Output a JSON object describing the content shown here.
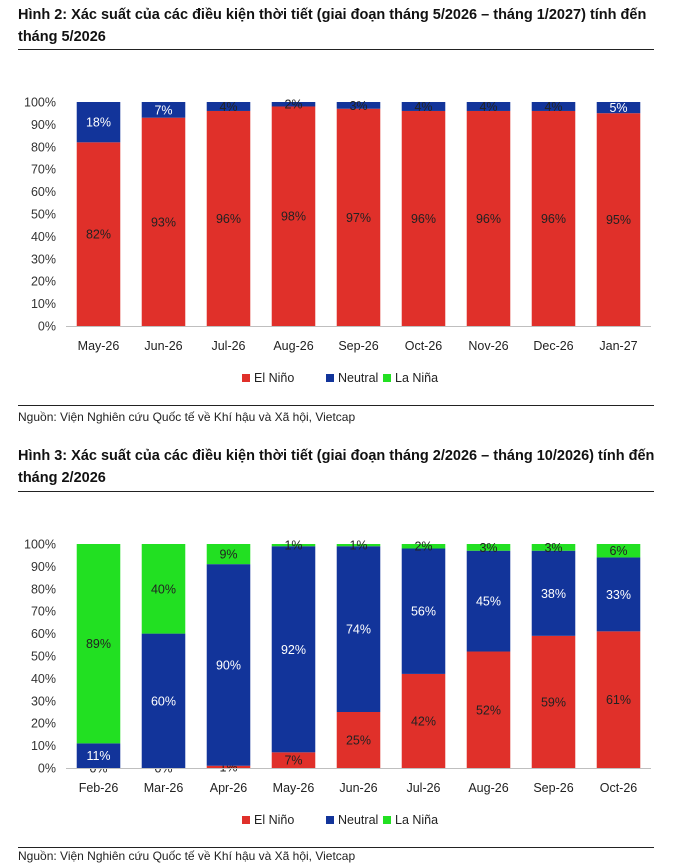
{
  "figures": [
    {
      "title": "Hình 2: Xác suất của các điều kiện thời tiết (giai đoạn tháng 5/2026 – tháng 1/2027) tính đến tháng 5/2026",
      "source": "Nguồn: Viện Nghiên cứu Quốc tế về Khí hậu và Xã hội, Vietcap"
    },
    {
      "title": "Hình 3: Xác suất của các điều kiện thời tiết (giai đoạn tháng 2/2026 – tháng 10/2026) tính đến tháng 2/2026",
      "source": "Nguồn: Viện Nghiên cứu Quốc tế về Khí hậu và Xã hội, Vietcap"
    }
  ],
  "colors": {
    "el_nino": "#e0302a",
    "neutral": "#12349a",
    "la_nina": "#22e022"
  },
  "chart_data": [
    {
      "type": "bar",
      "stacked": true,
      "title": "",
      "xlabel": "",
      "ylabel": "",
      "ylim": [
        0,
        100
      ],
      "yticks": [
        "0%",
        "10%",
        "20%",
        "30%",
        "40%",
        "50%",
        "60%",
        "70%",
        "80%",
        "90%",
        "100%"
      ],
      "categories": [
        "May-26",
        "Jun-26",
        "Jul-26",
        "Aug-26",
        "Sep-26",
        "Oct-26",
        "Nov-26",
        "Dec-26",
        "Jan-27"
      ],
      "series": [
        {
          "name": "El Niño",
          "values": [
            82,
            93,
            96,
            98,
            97,
            96,
            96,
            96,
            95
          ]
        },
        {
          "name": "Neutral",
          "values": [
            18,
            7,
            4,
            2,
            3,
            4,
            4,
            4,
            5
          ]
        },
        {
          "name": "La Niña",
          "values": [
            0,
            0,
            0,
            0,
            0,
            0,
            0,
            0,
            0
          ]
        }
      ],
      "legend_position": "bottom",
      "grid": false
    },
    {
      "type": "bar",
      "stacked": true,
      "title": "",
      "xlabel": "",
      "ylabel": "",
      "ylim": [
        0,
        100
      ],
      "yticks": [
        "0%",
        "10%",
        "20%",
        "30%",
        "40%",
        "50%",
        "60%",
        "70%",
        "80%",
        "90%",
        "100%"
      ],
      "categories": [
        "Feb-26",
        "Mar-26",
        "Apr-26",
        "May-26",
        "Jun-26",
        "Jul-26",
        "Aug-26",
        "Sep-26",
        "Oct-26"
      ],
      "series": [
        {
          "name": "El Niño",
          "values": [
            0,
            0,
            1,
            7,
            25,
            42,
            52,
            59,
            61
          ]
        },
        {
          "name": "Neutral",
          "values": [
            11,
            60,
            90,
            92,
            74,
            56,
            45,
            38,
            33
          ]
        },
        {
          "name": "La Niña",
          "values": [
            89,
            40,
            9,
            1,
            1,
            2,
            3,
            3,
            6
          ]
        }
      ],
      "legend_position": "bottom",
      "grid": false
    }
  ]
}
